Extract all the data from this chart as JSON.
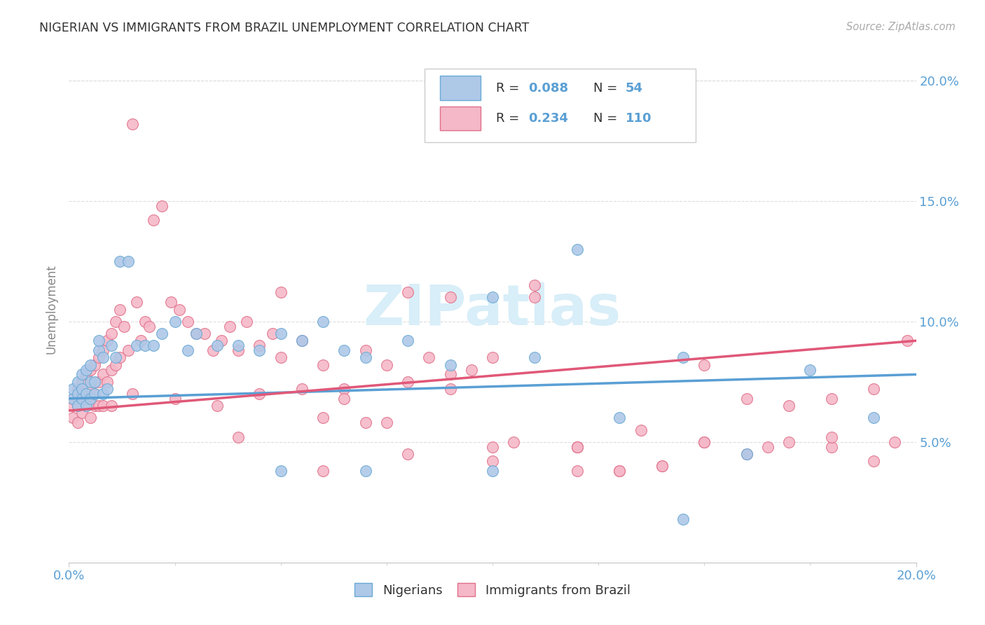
{
  "title": "NIGERIAN VS IMMIGRANTS FROM BRAZIL UNEMPLOYMENT CORRELATION CHART",
  "source": "Source: ZipAtlas.com",
  "ylabel": "Unemployment",
  "xlim": [
    0.0,
    0.2
  ],
  "ylim": [
    0.0,
    0.21
  ],
  "yticks": [
    0.05,
    0.1,
    0.15,
    0.2
  ],
  "ytick_labels": [
    "5.0%",
    "10.0%",
    "15.0%",
    "20.0%"
  ],
  "color_nigerian_fill": "#aec8e8",
  "color_nigerian_edge": "#6aaad4",
  "color_brazil_fill": "#f5b8c8",
  "color_brazil_edge": "#e0708a",
  "color_line_nigerian": "#5a9fd4",
  "color_line_brazil": "#e05878",
  "color_title": "#333333",
  "color_source": "#aaaaaa",
  "color_axis_label": "#888888",
  "color_tick_right": "#5a9fd4",
  "color_tick_bottom": "#5a9fd4",
  "watermark_text": "ZIPatlas",
  "watermark_color": "#d8eef8",
  "background_color": "#ffffff",
  "grid_color": "#dddddd",
  "legend_R1": "0.088",
  "legend_N1": "54",
  "legend_R2": "0.234",
  "legend_N2": "110",
  "nig_line_x0": 0.0,
  "nig_line_x1": 0.2,
  "nig_line_y0": 0.068,
  "nig_line_y1": 0.078,
  "bra_line_x0": 0.0,
  "bra_line_x1": 0.2,
  "bra_line_y0": 0.063,
  "bra_line_y1": 0.092,
  "nigerian_x": [
    0.001,
    0.001,
    0.002,
    0.002,
    0.002,
    0.003,
    0.003,
    0.003,
    0.004,
    0.004,
    0.004,
    0.005,
    0.005,
    0.005,
    0.006,
    0.006,
    0.007,
    0.007,
    0.008,
    0.008,
    0.009,
    0.01,
    0.011,
    0.012,
    0.014,
    0.016,
    0.018,
    0.02,
    0.022,
    0.025,
    0.028,
    0.03,
    0.035,
    0.04,
    0.045,
    0.05,
    0.055,
    0.06,
    0.065,
    0.07,
    0.08,
    0.09,
    0.1,
    0.11,
    0.12,
    0.13,
    0.145,
    0.16,
    0.175,
    0.19,
    0.05,
    0.07,
    0.1,
    0.145
  ],
  "nigerian_y": [
    0.068,
    0.072,
    0.065,
    0.07,
    0.075,
    0.068,
    0.072,
    0.078,
    0.065,
    0.07,
    0.08,
    0.068,
    0.075,
    0.082,
    0.07,
    0.075,
    0.088,
    0.092,
    0.07,
    0.085,
    0.072,
    0.09,
    0.085,
    0.125,
    0.125,
    0.09,
    0.09,
    0.09,
    0.095,
    0.1,
    0.088,
    0.095,
    0.09,
    0.09,
    0.088,
    0.095,
    0.092,
    0.1,
    0.088,
    0.085,
    0.092,
    0.082,
    0.11,
    0.085,
    0.13,
    0.06,
    0.085,
    0.045,
    0.08,
    0.06,
    0.038,
    0.038,
    0.038,
    0.018
  ],
  "brazil_x": [
    0.001,
    0.001,
    0.001,
    0.002,
    0.002,
    0.002,
    0.003,
    0.003,
    0.003,
    0.004,
    0.004,
    0.004,
    0.005,
    0.005,
    0.005,
    0.006,
    0.006,
    0.006,
    0.007,
    0.007,
    0.007,
    0.008,
    0.008,
    0.008,
    0.009,
    0.009,
    0.01,
    0.01,
    0.01,
    0.011,
    0.011,
    0.012,
    0.012,
    0.013,
    0.014,
    0.015,
    0.016,
    0.017,
    0.018,
    0.019,
    0.02,
    0.022,
    0.024,
    0.026,
    0.028,
    0.03,
    0.032,
    0.034,
    0.036,
    0.038,
    0.04,
    0.042,
    0.045,
    0.048,
    0.05,
    0.055,
    0.06,
    0.065,
    0.07,
    0.075,
    0.08,
    0.085,
    0.09,
    0.095,
    0.1,
    0.11,
    0.12,
    0.13,
    0.14,
    0.15,
    0.16,
    0.17,
    0.18,
    0.19,
    0.198,
    0.05,
    0.06,
    0.07,
    0.08,
    0.09,
    0.1,
    0.11,
    0.12,
    0.13,
    0.14,
    0.15,
    0.16,
    0.17,
    0.18,
    0.19,
    0.015,
    0.025,
    0.035,
    0.045,
    0.055,
    0.065,
    0.075,
    0.09,
    0.105,
    0.12,
    0.135,
    0.15,
    0.165,
    0.18,
    0.195,
    0.04,
    0.06,
    0.08,
    0.1,
    0.12
  ],
  "brazil_y": [
    0.065,
    0.06,
    0.068,
    0.072,
    0.058,
    0.065,
    0.075,
    0.062,
    0.07,
    0.068,
    0.078,
    0.065,
    0.072,
    0.08,
    0.06,
    0.082,
    0.07,
    0.065,
    0.085,
    0.075,
    0.065,
    0.088,
    0.078,
    0.065,
    0.092,
    0.075,
    0.095,
    0.08,
    0.065,
    0.1,
    0.082,
    0.105,
    0.085,
    0.098,
    0.088,
    0.182,
    0.108,
    0.092,
    0.1,
    0.098,
    0.142,
    0.148,
    0.108,
    0.105,
    0.1,
    0.095,
    0.095,
    0.088,
    0.092,
    0.098,
    0.088,
    0.1,
    0.09,
    0.095,
    0.085,
    0.092,
    0.082,
    0.072,
    0.088,
    0.082,
    0.075,
    0.085,
    0.072,
    0.08,
    0.085,
    0.11,
    0.048,
    0.038,
    0.04,
    0.082,
    0.068,
    0.065,
    0.068,
    0.072,
    0.092,
    0.112,
    0.06,
    0.058,
    0.112,
    0.11,
    0.048,
    0.115,
    0.048,
    0.038,
    0.04,
    0.05,
    0.045,
    0.05,
    0.048,
    0.042,
    0.07,
    0.068,
    0.065,
    0.07,
    0.072,
    0.068,
    0.058,
    0.078,
    0.05,
    0.048,
    0.055,
    0.05,
    0.048,
    0.052,
    0.05,
    0.052,
    0.038,
    0.045,
    0.042,
    0.038
  ]
}
